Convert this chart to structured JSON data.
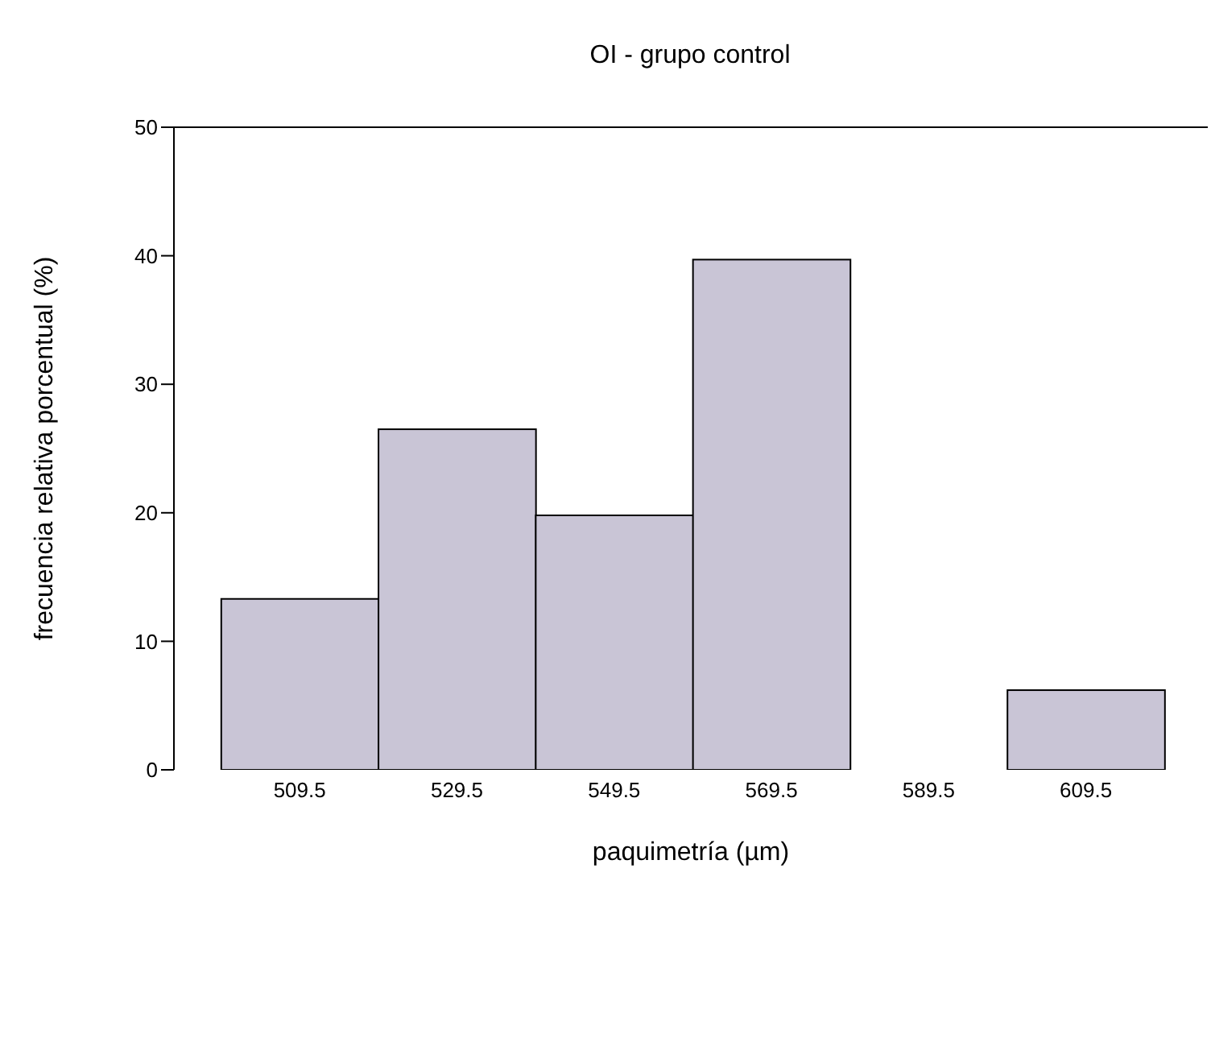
{
  "chart_data": {
    "type": "histogram",
    "title": "OI - grupo control",
    "xlabel": "paquimetría (µm)",
    "ylabel": "frecuencia relativa porcentual (%)",
    "bins": [
      499.5,
      519.5,
      539.5,
      559.5,
      579.5,
      599.5,
      619.5
    ],
    "values": [
      13.3,
      26.5,
      19.8,
      39.7,
      0,
      6.2
    ],
    "color": "#c9c5d6",
    "xlim": [
      493.5,
      625
    ],
    "xticks": [
      509.5,
      529.5,
      549.5,
      569.5,
      589.5,
      609.5
    ],
    "ylim": [
      0,
      50
    ],
    "yticks": [
      0,
      10,
      20,
      30,
      40,
      50
    ]
  }
}
